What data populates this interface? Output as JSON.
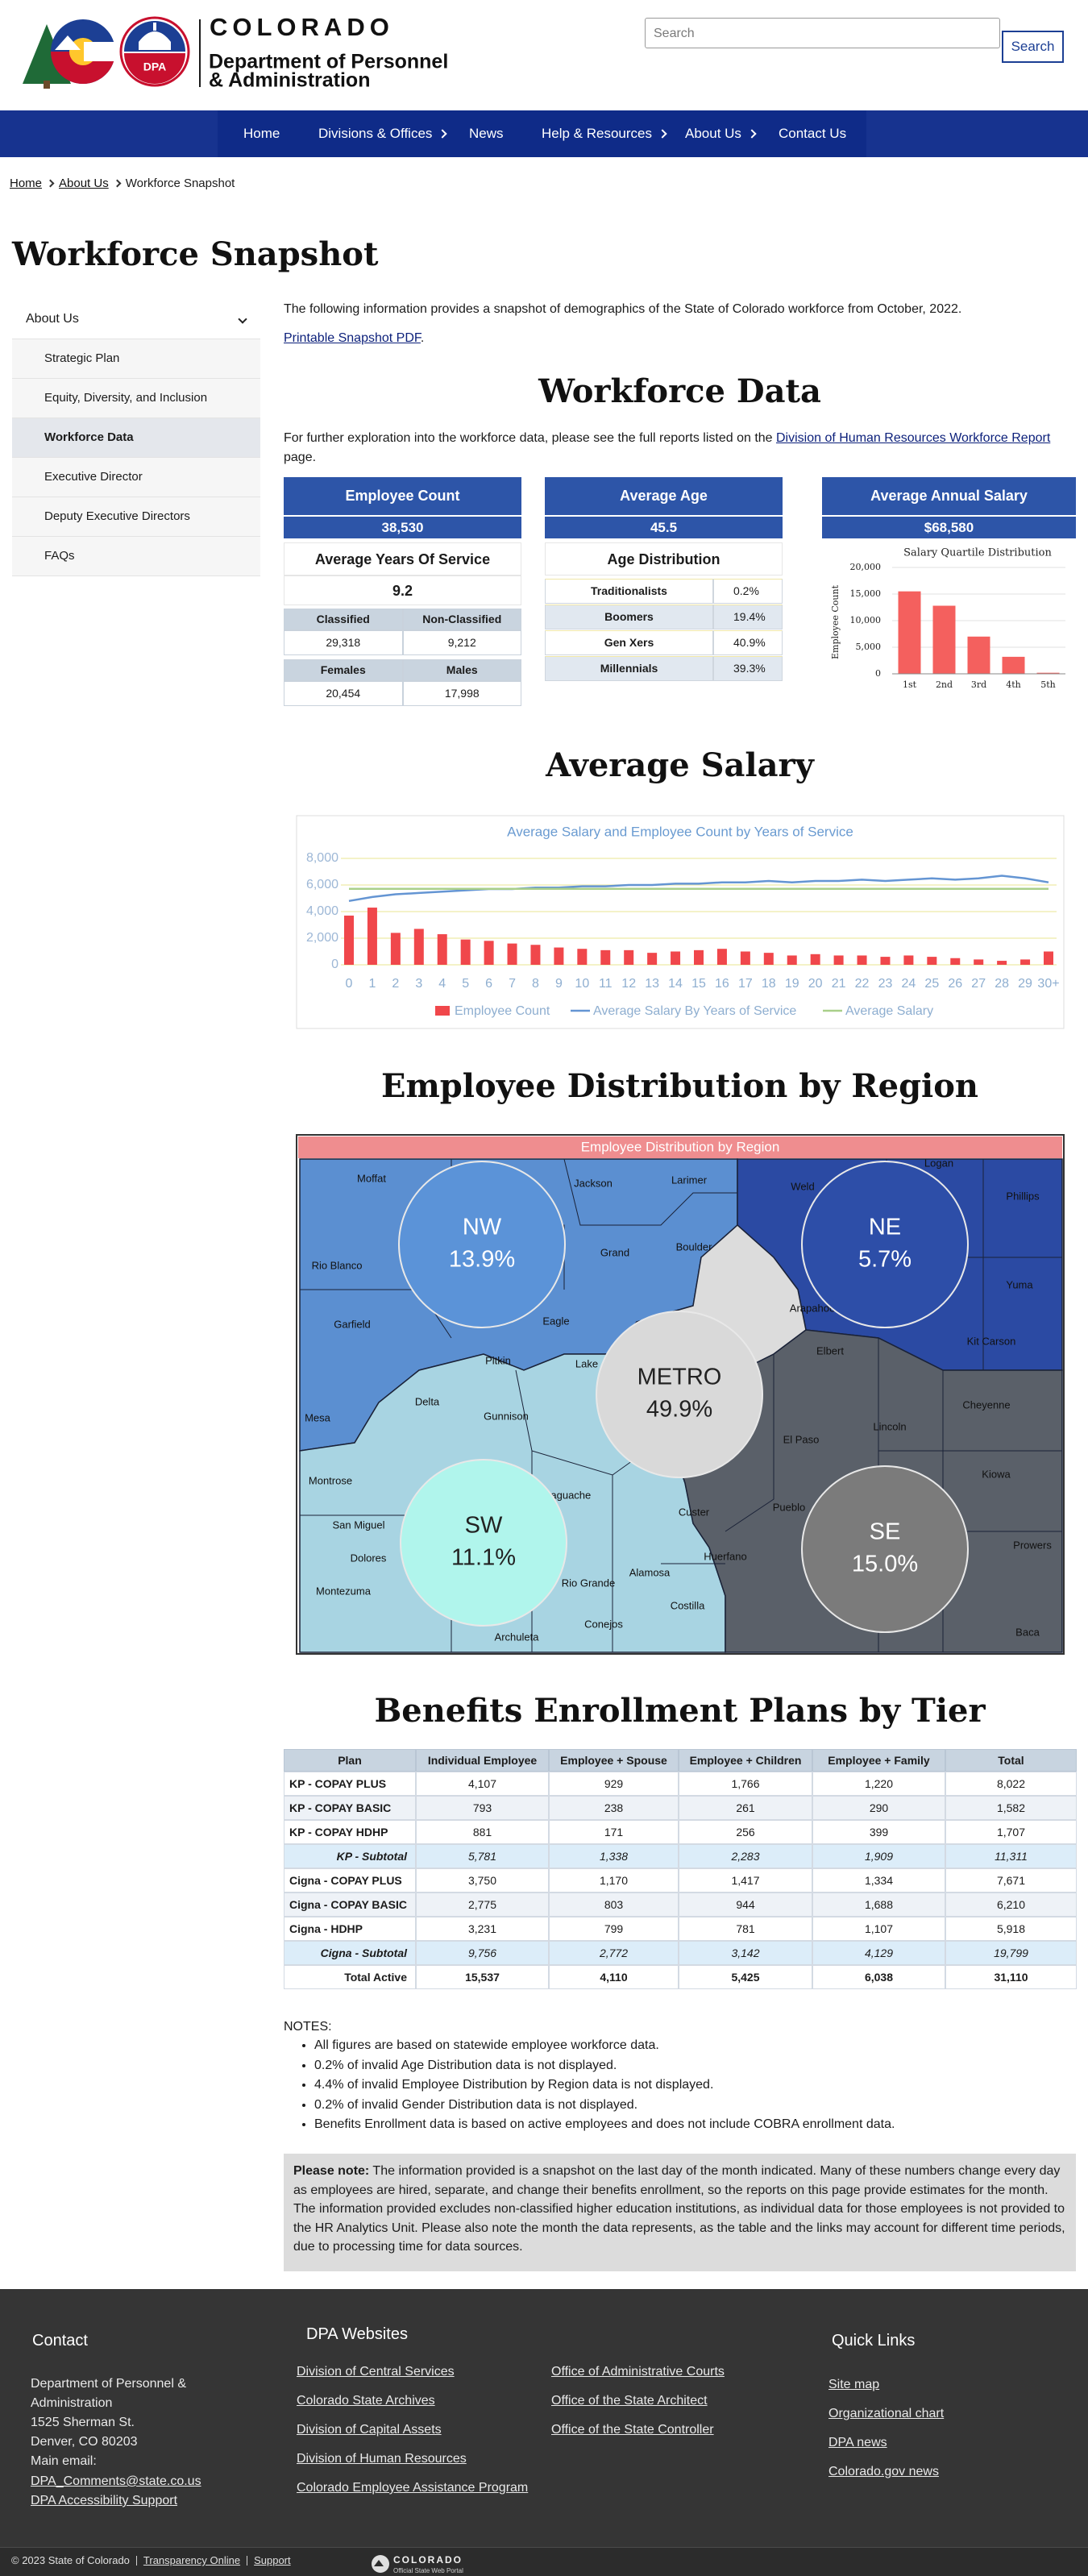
{
  "header": {
    "wordmark": "COLORADO",
    "dept_line1": "Department of Personnel",
    "dept_line2": "& Administration",
    "badge": "DPA",
    "search_placeholder": "Search",
    "search_button": "Search"
  },
  "nav": [
    {
      "label": "Home",
      "submenu": false
    },
    {
      "label": "Divisions & Offices",
      "submenu": true
    },
    {
      "label": "News",
      "submenu": false
    },
    {
      "label": "Help & Resources",
      "submenu": true
    },
    {
      "label": "About Us",
      "submenu": true
    },
    {
      "label": "Contact Us",
      "submenu": false
    }
  ],
  "breadcrumb": [
    "Home",
    "About Us",
    "Workforce Snapshot"
  ],
  "page_title": "Workforce Snapshot",
  "sidebar": {
    "heading": "About Us",
    "items": [
      "Strategic Plan",
      "Equity, Diversity, and Inclusion",
      "Workforce Data",
      "Executive Director",
      "Deputy Executive Directors",
      "FAQs"
    ],
    "active": 2
  },
  "intro": {
    "text": "The following information provides a snapshot of demographics of the State of Colorado workforce from October, 2022.",
    "pdf_link": "Printable Snapshot PDF",
    "pdf_suffix": "."
  },
  "workforce_data": {
    "heading": "Workforce Data",
    "text_before": "For further exploration into the workforce data, please see the full reports listed on the ",
    "link": "Division of Human Resources Workforce Report",
    "text_after": " page."
  },
  "cards": [
    {
      "title": "Employee Count",
      "value": "38,530"
    },
    {
      "title": "Average Age",
      "value": "45.5"
    },
    {
      "title": "Average Annual Salary",
      "value": "$68,580"
    }
  ],
  "service": {
    "title": "Average Years Of Service",
    "value": "9.2",
    "tables": [
      [
        [
          "Classified",
          "Non-Classified"
        ],
        [
          "29,318",
          "9,212"
        ]
      ],
      [
        [
          "Females",
          "Males"
        ],
        [
          "20,454",
          "17,998"
        ]
      ]
    ]
  },
  "age_distribution": {
    "title": "Age Distribution",
    "rows": [
      [
        "Traditionalists",
        "0.2%"
      ],
      [
        "Boomers",
        "19.4%"
      ],
      [
        "Gen Xers",
        "40.9%"
      ],
      [
        "Millennials",
        "39.3%"
      ]
    ]
  },
  "chart_data": [
    {
      "type": "bar",
      "title": "Salary Quartile Distribution",
      "y_label": "Employee Count",
      "categories": [
        "1st",
        "2nd",
        "3rd",
        "4th",
        "5th"
      ],
      "values": [
        15500,
        12800,
        7000,
        3200,
        200
      ],
      "color": "#f4605e",
      "ylim": [
        0,
        20000
      ],
      "yticks": [
        0,
        {
          "value": 5000,
          "label": "5,000"
        },
        {
          "value": 10000,
          "label": "10,000"
        },
        {
          "value": 15000,
          "label": "15,000"
        },
        {
          "value": 20000,
          "label": "20,000"
        }
      ],
      "grid": true
    },
    {
      "type": "combo",
      "title": "Average Salary and Employee Count by Years of Service",
      "categories": [
        "0",
        "1",
        "2",
        "3",
        "4",
        "5",
        "6",
        "7",
        "8",
        "9",
        "10",
        "11",
        "12",
        "13",
        "14",
        "15",
        "16",
        "17",
        "18",
        "19",
        "20",
        "21",
        "22",
        "23",
        "24",
        "25",
        "26",
        "27",
        "28",
        "29",
        "30+"
      ],
      "series": [
        {
          "name": "Employee Count",
          "kind": "bar",
          "color": "#f0474b",
          "values": [
            3700,
            4300,
            2400,
            2700,
            2300,
            1900,
            1800,
            1600,
            1500,
            1300,
            1200,
            1100,
            1100,
            900,
            1000,
            1100,
            1200,
            1000,
            900,
            700,
            800,
            700,
            700,
            600,
            700,
            600,
            500,
            400,
            300,
            400,
            1000
          ]
        },
        {
          "name": "Average Salary By Years of Service",
          "kind": "line",
          "color": "#6495d3",
          "values": [
            4800,
            5100,
            5300,
            5400,
            5500,
            5600,
            5700,
            5700,
            5800,
            5800,
            5900,
            5900,
            6000,
            6000,
            6100,
            6100,
            6200,
            6200,
            6300,
            6200,
            6300,
            6300,
            6400,
            6300,
            6400,
            6500,
            6400,
            6500,
            6700,
            6500,
            6200
          ]
        },
        {
          "name": "Average Salary",
          "kind": "line",
          "color": "#a9cf8a",
          "values": [
            5715,
            5715,
            5715,
            5715,
            5715,
            5715,
            5715,
            5715,
            5715,
            5715,
            5715,
            5715,
            5715,
            5715,
            5715,
            5715,
            5715,
            5715,
            5715,
            5715,
            5715,
            5715,
            5715,
            5715,
            5715,
            5715,
            5715,
            5715,
            5715,
            5715,
            5715
          ]
        }
      ],
      "ylim": [
        0,
        8000
      ],
      "yticks": [
        0,
        {
          "value": 2000,
          "label": "2,000"
        },
        {
          "value": 4000,
          "label": "4,000"
        },
        {
          "value": 6000,
          "label": "6,000"
        },
        {
          "value": 8000,
          "label": "8,000"
        }
      ],
      "grid": true,
      "grid_color": "#f1edb6",
      "legend": "bottom"
    }
  ],
  "salary_heading": "Average Salary",
  "region_heading": "Employee Distribution by Region",
  "region_map": {
    "title": "Employee Distribution by Region",
    "regions": [
      {
        "name": "NW",
        "value": 13.9,
        "value_label": "13.9%",
        "color": "#5b93d8",
        "text_color": "#ffffff"
      },
      {
        "name": "NE",
        "value": 5.7,
        "value_label": "5.7%",
        "color": "#2d4ea8",
        "text_color": "#ffffff"
      },
      {
        "name": "METRO",
        "value": 49.9,
        "value_label": "49.9%",
        "color": "#d9d9d9",
        "text_color": "#222222"
      },
      {
        "name": "SW",
        "value": 11.1,
        "value_label": "11.1%",
        "color": "#b0f5ec",
        "text_color": "#222222"
      },
      {
        "name": "SE",
        "value": 15.0,
        "value_label": "15.0%",
        "color": "#7b7b7b",
        "text_color": "#ffffff"
      }
    ],
    "counties": [
      "Moffat",
      "Jackson",
      "Larimer",
      "Weld",
      "Logan",
      "Phillips",
      "Rio Blanco",
      "Grand",
      "Boulder",
      "Yuma",
      "Garfield",
      "Eagle",
      "Arapahoe",
      "Elbert",
      "Kit Carson",
      "Pitkin",
      "Lake",
      "Delta",
      "Gunnison",
      "Lincoln",
      "Cheyenne",
      "Mesa",
      "El Paso",
      "Kiowa",
      "Montrose",
      "Saguache",
      "Custer",
      "Pueblo",
      "San Miguel",
      "Dolores",
      "Huerfano",
      "Prowers",
      "Montezuma",
      "Rio Grande",
      "Alamosa",
      "Costilla",
      "Conejos",
      "Archuleta",
      "Baca"
    ]
  },
  "benefits": {
    "heading": "Benefits Enrollment Plans by Tier",
    "columns": [
      "Plan",
      "Individual Employee",
      "Employee + Spouse",
      "Employee + Children",
      "Employee + Family",
      "Total"
    ],
    "rows": [
      [
        "KP - COPAY PLUS",
        "4,107",
        "929",
        "1,766",
        "1,220",
        "8,022"
      ],
      [
        "KP - COPAY BASIC",
        "793",
        "238",
        "261",
        "290",
        "1,582"
      ],
      [
        "KP - COPAY HDHP",
        "881",
        "171",
        "256",
        "399",
        "1,707"
      ],
      [
        "KP - Subtotal",
        "5,781",
        "1,338",
        "2,283",
        "1,909",
        "11,311"
      ],
      [
        "Cigna - COPAY PLUS",
        "3,750",
        "1,170",
        "1,417",
        "1,334",
        "7,671"
      ],
      [
        "Cigna - COPAY BASIC",
        "2,775",
        "803",
        "944",
        "1,688",
        "6,210"
      ],
      [
        "Cigna - HDHP",
        "3,231",
        "799",
        "781",
        "1,107",
        "5,918"
      ],
      [
        "Cigna - Subtotal",
        "9,756",
        "2,772",
        "3,142",
        "4,129",
        "19,799"
      ],
      [
        "Total Active",
        "15,537",
        "4,110",
        "5,425",
        "6,038",
        "31,110"
      ]
    ],
    "subtotal_rows": [
      3,
      7
    ],
    "total_row": 8
  },
  "notes": {
    "heading": "NOTES:",
    "items": [
      "All figures are based on statewide employee workforce data.",
      "0.2% of invalid Age Distribution data is not displayed.",
      "4.4% of invalid Employee Distribution by Region data is not displayed.",
      "0.2% of invalid Gender Distribution data is not displayed.",
      "Benefits Enrollment data is based on active employees and does not include COBRA enrollment data."
    ]
  },
  "please_note": {
    "label": "Please note:",
    "text": " The information provided is a snapshot on the last day of the month indicated. Many of these numbers change every day as employees are hired, separate, and change their benefits enrollment, so the reports on this page provide estimates for the month. The information provided excludes non-classified higher education institutions, as individual data for those employees is not provided to the HR Analytics Unit. Please also note the month the data represents, as the table and the links may account for different time periods, due to processing time for data sources."
  },
  "footer": {
    "contact": {
      "heading": "Contact",
      "address": "Department of Personnel & Administration",
      "lines": [
        "1525 Sherman St.",
        "Denver, CO 80203",
        "Main email:"
      ],
      "links": [
        "DPA_Comments@state.co.us",
        "DPA Accessibility Support"
      ]
    },
    "websites": {
      "heading": "DPA Websites",
      "col1": [
        "Division of Central Services",
        "Colorado State Archives",
        "Division of Capital Assets",
        "Division of Human Resources",
        "Colorado Employee Assistance Program"
      ],
      "col2": [
        "Office of Administrative Courts",
        "Office of the State Architect",
        "Office of the State Controller"
      ]
    },
    "quick_links": {
      "heading": "Quick Links",
      "links": [
        "Site map",
        "Organizational chart",
        "DPA news",
        "Colorado.gov news"
      ]
    }
  },
  "bottom": {
    "copyright": "© 2023 State of Colorado",
    "links": [
      "Transparency Online",
      "Support"
    ],
    "portal_name": "COLORADO",
    "portal_tag": "Official State Web Portal"
  }
}
